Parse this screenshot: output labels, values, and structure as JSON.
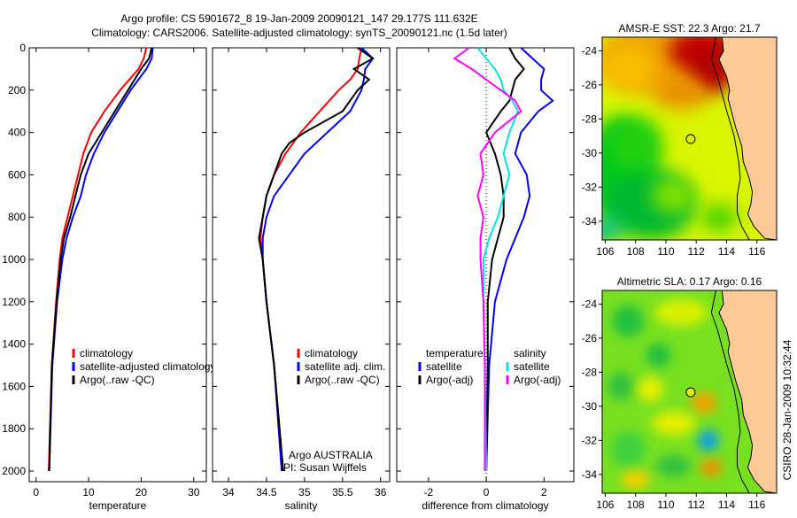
{
  "title_line1": "Argo profile: CS 5901672_8 19-Jan-2009 20090121_147 29.177S 111.632E",
  "title_line2": "Climatology: CARS2006. Satellite-adjusted climatology: synTS_20090121.nc (1.5d later)",
  "side_text": "CSIRO 28-Jan-2009 10:32:44",
  "colors": {
    "climatology": "#ff0000",
    "satellite": "#0000ff",
    "argo": "#000000",
    "sal_satellite": "#00e5e5",
    "sal_argo": "#ff00ff",
    "land": "#fcc997"
  },
  "chart_data": [
    {
      "type": "line",
      "id": "temperature",
      "xlabel": "temperature",
      "ylabel": "depth",
      "xlim": [
        -1.3,
        32.4
      ],
      "ylim": [
        0,
        2050
      ],
      "xticks": [
        0,
        10,
        20,
        30
      ],
      "yticks": [
        0,
        200,
        400,
        600,
        800,
        1000,
        1200,
        1400,
        1600,
        1800,
        2000
      ],
      "depth": [
        0,
        50,
        100,
        200,
        300,
        400,
        500,
        600,
        700,
        800,
        900,
        1000,
        1200,
        1500,
        2000
      ],
      "series": [
        {
          "name": "climatology",
          "color": "#ff0000",
          "values": [
            21,
            20.5,
            19.5,
            16,
            13,
            10.5,
            9,
            8,
            7,
            6,
            5,
            4.5,
            3.8,
            3,
            2.4
          ]
        },
        {
          "name": "satellite-adjusted climatology",
          "color": "#0000ff",
          "values": [
            22.2,
            22,
            21,
            18,
            15.5,
            13,
            11,
            9.5,
            8.5,
            7,
            5.8,
            5,
            4,
            3.1,
            2.5
          ]
        },
        {
          "name": "Argo(..raw -QC)",
          "color": "#000000",
          "values": [
            22,
            21.5,
            20,
            17.5,
            15,
            12.5,
            10,
            8.5,
            7.5,
            6.5,
            5.3,
            4.7,
            3.9,
            3,
            2.5
          ]
        }
      ],
      "legend": [
        "climatology",
        "satellite-adjusted climatology",
        "Argo(..raw -QC)"
      ]
    },
    {
      "type": "line",
      "id": "salinity",
      "xlabel": "salinity",
      "xlim": [
        33.79,
        36.12
      ],
      "ylim": [
        0,
        2050
      ],
      "xticks": [
        34,
        34.5,
        35,
        35.5,
        36
      ],
      "depth": [
        0,
        50,
        100,
        150,
        200,
        300,
        400,
        450,
        500,
        600,
        700,
        800,
        900,
        1000,
        1200,
        1500,
        2000
      ],
      "series": [
        {
          "name": "climatology",
          "color": "#ff0000",
          "values": [
            35.75,
            35.72,
            35.7,
            35.6,
            35.45,
            35.2,
            34.95,
            34.85,
            34.75,
            34.6,
            34.5,
            34.45,
            34.42,
            34.45,
            34.5,
            34.6,
            34.72
          ]
        },
        {
          "name": "satellite adj. clim.",
          "color": "#0000ff",
          "values": [
            35.75,
            35.9,
            35.8,
            35.78,
            35.75,
            35.6,
            35.3,
            35.15,
            35.0,
            34.8,
            34.6,
            34.5,
            34.45,
            34.45,
            34.5,
            34.6,
            34.7
          ]
        },
        {
          "name": "Argo(..raw -QC)",
          "color": "#000000",
          "values": [
            35.7,
            35.9,
            35.65,
            35.85,
            35.7,
            35.5,
            35.0,
            34.8,
            34.7,
            34.6,
            34.5,
            34.45,
            34.4,
            34.45,
            34.5,
            34.6,
            34.72
          ]
        }
      ],
      "legend": [
        "climatology",
        "satellite adj. clim.",
        "Argo(..raw -QC)"
      ],
      "annotation": [
        "Argo AUSTRALIA",
        "PI: Susan Wijffels"
      ]
    },
    {
      "type": "line",
      "id": "difference",
      "xlabel": "difference from climatology",
      "xlim": [
        -3.1,
        3.03
      ],
      "ylim": [
        0,
        2050
      ],
      "xticks": [
        -2,
        0,
        2
      ],
      "depth": [
        0,
        50,
        100,
        150,
        200,
        250,
        300,
        400,
        500,
        600,
        700,
        800,
        900,
        1000,
        1200,
        1500,
        2000
      ],
      "series": [
        {
          "name": "temperature satellite",
          "color": "#0000ff",
          "values": [
            1.2,
            1.6,
            2.0,
            1.9,
            1.9,
            2.3,
            1.8,
            1.2,
            1.0,
            1.4,
            1.5,
            1.3,
            1.0,
            0.7,
            0.3,
            0.1,
            0.0
          ]
        },
        {
          "name": "temperature Argo(-adj)",
          "color": "#000000",
          "values": [
            0.8,
            1.0,
            1.3,
            1.0,
            0.9,
            0.8,
            0.5,
            0.0,
            0.3,
            0.5,
            0.6,
            0.6,
            0.4,
            0.2,
            0.05,
            0.05,
            0.0
          ]
        },
        {
          "name": "salinity satellite",
          "color": "#00e5e5",
          "values": [
            -0.3,
            0.0,
            0.3,
            0.5,
            0.6,
            0.9,
            1.1,
            0.8,
            0.6,
            0.8,
            0.6,
            0.4,
            0.1,
            -0.1,
            -0.1,
            -0.05,
            0.0
          ]
        },
        {
          "name": "salinity Argo(-adj)",
          "color": "#ff00ff",
          "values": [
            -0.6,
            -1.1,
            -0.5,
            0.0,
            0.5,
            1.0,
            1.2,
            0.3,
            -0.2,
            -0.1,
            -0.3,
            -0.1,
            -0.2,
            -0.2,
            -0.1,
            -0.05,
            -0.05
          ]
        }
      ],
      "legend_headers": [
        "temperature",
        "salinity"
      ],
      "legend": [
        "satellite",
        "Argo(-adj)",
        "satellite",
        "Argo(-adj)"
      ]
    },
    {
      "type": "heatmap",
      "id": "sst-map",
      "title": "AMSR-E SST: 22.3 Argo: 21.7",
      "xlim": [
        105.8,
        117.3
      ],
      "ylim": [
        -35.1,
        -23.2
      ],
      "xticks": [
        106,
        108,
        110,
        112,
        114,
        116
      ],
      "yticks": [
        -24,
        -26,
        -28,
        -30,
        -32,
        -34
      ],
      "argo_position": [
        111.632,
        -29.177
      ]
    },
    {
      "type": "heatmap",
      "id": "sla-map",
      "title": "Altimetric SLA: 0.17 Argo: 0.16",
      "xlim": [
        105.8,
        117.3
      ],
      "ylim": [
        -35.1,
        -23.2
      ],
      "xticks": [
        106,
        108,
        110,
        112,
        114,
        116
      ],
      "yticks": [
        -24,
        -26,
        -28,
        -30,
        -32,
        -34
      ],
      "argo_position": [
        111.632,
        -29.177
      ]
    }
  ]
}
